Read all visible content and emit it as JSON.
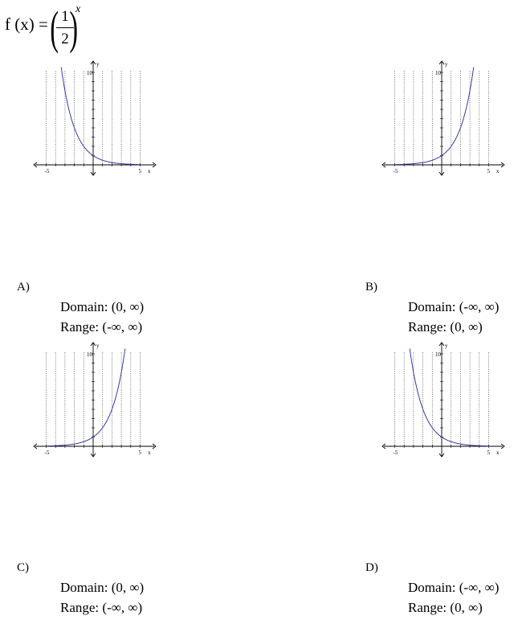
{
  "formula": {
    "lhs": "f (x) = ",
    "numerator": "1",
    "denominator": "2",
    "exponent": "x"
  },
  "axis_labels": {
    "x": "x",
    "y": "y",
    "x_min_tick": "-5",
    "x_max_tick": "5",
    "y_max_tick": "10"
  },
  "options": [
    {
      "letter": "A)",
      "domain": "Domain: (0, ∞)",
      "range": "Range: (-∞, ∞)"
    },
    {
      "letter": "B)",
      "domain": "Domain: (-∞, ∞)",
      "range": "Range: (0, ∞)"
    },
    {
      "letter": "C)",
      "domain": "Domain: (0, ∞)",
      "range": "Range: (-∞, ∞)"
    },
    {
      "letter": "D)",
      "domain": "Domain: (-∞, ∞)",
      "range": "Range: (0, ∞)"
    }
  ],
  "chart_data": [
    {
      "type": "line",
      "x_range": [
        -5,
        5
      ],
      "y_range": [
        0,
        10
      ],
      "grid": true,
      "function": "(1/2)^x",
      "color": "#3a3aa8"
    },
    {
      "type": "line",
      "x_range": [
        -5,
        5
      ],
      "y_range": [
        0,
        10
      ],
      "grid": true,
      "function": "2^x",
      "color": "#3a3aa8"
    },
    {
      "type": "line",
      "x_range": [
        -5,
        5
      ],
      "y_range": [
        0,
        10
      ],
      "grid": true,
      "function": "2^x",
      "color": "#3a3aa8"
    },
    {
      "type": "line",
      "x_range": [
        -5,
        5
      ],
      "y_range": [
        0,
        10
      ],
      "grid": true,
      "function": "(1/2)^x",
      "color": "#3a3aa8"
    }
  ]
}
